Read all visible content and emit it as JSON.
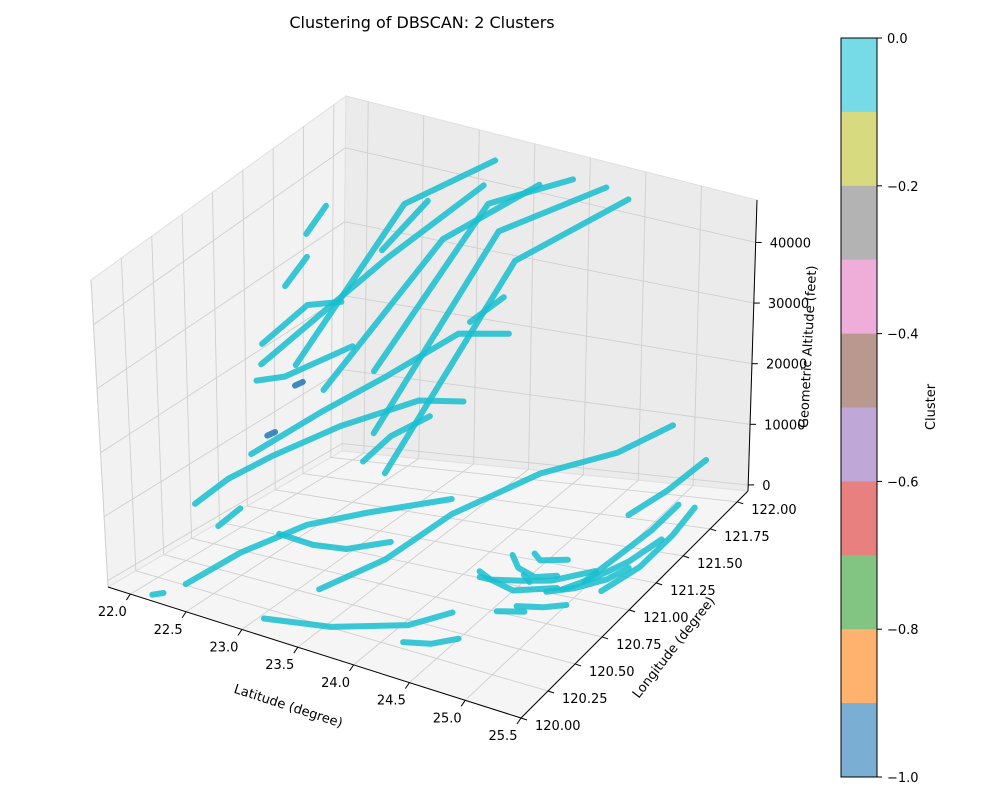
{
  "chart_data": {
    "type": "scatter",
    "title": "Clustering of DBSCAN: 2 Clusters",
    "xlabel": "Latitude (degree)",
    "ylabel": "Longitude (degree)",
    "zlabel": "Geometric Altitude (feet)",
    "xlim": [
      21.8,
      25.5
    ],
    "ylim": [
      120.0,
      122.1
    ],
    "zlim": [
      -1000,
      47000
    ],
    "x_ticks": [
      "22.0",
      "22.5",
      "23.0",
      "23.5",
      "24.0",
      "24.5",
      "25.0",
      "25.5"
    ],
    "y_ticks": [
      "120.00",
      "120.25",
      "120.50",
      "120.75",
      "121.00",
      "121.25",
      "121.50",
      "121.75",
      "122.00"
    ],
    "z_ticks": [
      "0",
      "10000",
      "20000",
      "30000",
      "40000"
    ],
    "grid": true,
    "pane_color": "#f2f2f2",
    "point_color": "#17becf",
    "colorbar": {
      "label": "Cluster",
      "ticks": [
        "0.0",
        "−0.2",
        "−0.4",
        "−0.6",
        "−0.8",
        "−1.0"
      ],
      "min": -1.0,
      "max": 0.0,
      "colors": [
        "#76dbe6",
        "#d8da80",
        "#b3b3b3",
        "#eeaed9",
        "#b9988f",
        "#bfa7d8",
        "#e98080",
        "#82c582",
        "#ffb16e",
        "#7aaed3"
      ]
    },
    "series": [
      {
        "cluster": 0,
        "tracks": [
          {
            "points": [
              [
                21.88,
                121.7,
                33000
              ],
              [
                21.95,
                121.8,
                36000
              ]
            ]
          },
          {
            "points": [
              [
                21.9,
                121.5,
                28000
              ],
              [
                21.97,
                121.62,
                31000
              ]
            ]
          },
          {
            "points": [
              [
                22.2,
                121.3,
                20000
              ],
              [
                22.6,
                121.85,
                38000
              ],
              [
                23.2,
                122.05,
                44000
              ]
            ]
          },
          {
            "points": [
              [
                22.5,
                121.25,
                18000
              ],
              [
                23.0,
                121.8,
                35000
              ],
              [
                23.6,
                122.05,
                42000
              ]
            ]
          },
          {
            "points": [
              [
                22.8,
                121.4,
                20000
              ],
              [
                23.3,
                121.9,
                40000
              ],
              [
                23.9,
                122.05,
                44000
              ]
            ]
          },
          {
            "points": [
              [
                23.0,
                121.2,
                14000
              ],
              [
                23.5,
                121.8,
                38000
              ],
              [
                24.2,
                122.05,
                44000
              ]
            ]
          },
          {
            "points": [
              [
                23.2,
                121.1,
                10000
              ],
              [
                23.7,
                121.75,
                35000
              ],
              [
                24.4,
                122.05,
                43000
              ]
            ]
          },
          {
            "points": [
              [
                22.1,
                121.1,
                22000
              ],
              [
                22.6,
                121.7,
                32000
              ],
              [
                23.1,
                122.05,
                40000
              ]
            ]
          },
          {
            "points": [
              [
                22.35,
                121.9,
                30000
              ],
              [
                22.6,
                122.05,
                36000
              ]
            ]
          },
          {
            "points": [
              [
                21.9,
                121.3,
                22000
              ],
              [
                22.1,
                121.5,
                26000
              ],
              [
                22.3,
                121.6,
                26000
              ]
            ]
          },
          {
            "points": [
              [
                21.95,
                121.2,
                18000
              ],
              [
                22.1,
                121.3,
                18000
              ],
              [
                22.4,
                121.6,
                20000
              ]
            ]
          },
          {
            "points": [
              [
                23.2,
                121.85,
                23000
              ],
              [
                23.4,
                121.95,
                26000
              ]
            ]
          },
          {
            "points": [
              [
                22.1,
                121.0,
                10000
              ],
              [
                22.5,
                121.25,
                15000
              ],
              [
                22.8,
                121.5,
                18000
              ],
              [
                23.1,
                121.85,
                21000
              ],
              [
                23.4,
                122.0,
                20000
              ]
            ]
          },
          {
            "points": [
              [
                22.8,
                121.3,
                8000
              ],
              [
                22.95,
                121.4,
                11000
              ],
              [
                23.1,
                121.6,
                12000
              ]
            ]
          },
          {
            "points": [
              [
                22.1,
                120.5,
                8000
              ],
              [
                22.2,
                120.7,
                10000
              ],
              [
                22.4,
                120.9,
                12000
              ],
              [
                22.7,
                121.2,
                14000
              ],
              [
                23.0,
                121.6,
                14000
              ],
              [
                23.2,
                121.8,
                12000
              ]
            ]
          },
          {
            "points": [
              [
                22.2,
                120.6,
                4000
              ],
              [
                22.3,
                120.7,
                6000
              ]
            ]
          },
          {
            "points": [
              [
                23.2,
                120.5,
                0
              ],
              [
                23.5,
                120.8,
                2000
              ],
              [
                23.8,
                121.1,
                6000
              ],
              [
                24.2,
                121.5,
                8000
              ],
              [
                24.6,
                121.8,
                8000
              ],
              [
                24.9,
                122.0,
                10000
              ]
            ]
          },
          {
            "points": [
              [
                22.3,
                120.2,
                0
              ],
              [
                22.6,
                120.4,
                4000
              ],
              [
                22.9,
                120.7,
                6000
              ],
              [
                23.2,
                120.95,
                6000
              ],
              [
                23.6,
                121.3,
                5000
              ]
            ]
          },
          {
            "points": [
              [
                22.8,
                120.55,
                6000
              ],
              [
                23.0,
                120.65,
                4000
              ],
              [
                23.2,
                120.75,
                3000
              ],
              [
                23.5,
                120.85,
                4000
              ]
            ]
          },
          {
            "points": [
              [
                24.2,
                120.25,
                0
              ],
              [
                24.4,
                120.3,
                0
              ],
              [
                24.6,
                120.35,
                1000
              ]
            ]
          },
          {
            "points": [
              [
                23.1,
                120.1,
                0
              ],
              [
                23.6,
                120.2,
                0
              ],
              [
                24.1,
                120.4,
                0
              ],
              [
                24.3,
                120.6,
                0
              ]
            ]
          },
          {
            "points": [
              [
                22.2,
                120.0,
                0
              ],
              [
                22.25,
                120.05,
                0
              ]
            ]
          },
          {
            "points": [
              [
                25.0,
                121.1,
                0
              ],
              [
                25.2,
                121.2,
                3000
              ],
              [
                25.35,
                121.35,
                5000
              ],
              [
                25.45,
                121.5,
                7000
              ]
            ]
          },
          {
            "points": [
              [
                24.9,
                121.0,
                0
              ],
              [
                25.1,
                121.1,
                1000
              ],
              [
                25.25,
                121.25,
                1500
              ],
              [
                25.4,
                121.4,
                3000
              ]
            ]
          },
          {
            "points": [
              [
                24.8,
                120.95,
                0
              ],
              [
                25.0,
                121.0,
                500
              ],
              [
                25.2,
                121.1,
                1000
              ],
              [
                25.3,
                121.2,
                1500
              ]
            ]
          },
          {
            "points": [
              [
                25.2,
                121.05,
                0
              ],
              [
                25.35,
                121.25,
                1000
              ],
              [
                25.45,
                121.45,
                3000
              ],
              [
                25.5,
                121.6,
                5000
              ]
            ]
          },
          {
            "points": [
              [
                25.0,
                121.5,
                4000
              ],
              [
                25.2,
                121.65,
                6000
              ],
              [
                25.4,
                121.8,
                9000
              ]
            ]
          },
          {
            "points": [
              [
                24.4,
                121.25,
                0
              ],
              [
                24.5,
                121.2,
                0
              ],
              [
                24.7,
                121.25,
                0
              ]
            ]
          },
          {
            "points": [
              [
                24.5,
                121.05,
                0
              ],
              [
                24.6,
                121.0,
                0
              ]
            ]
          },
          {
            "points": [
              [
                24.2,
                120.95,
                0
              ],
              [
                24.3,
                120.95,
                0
              ],
              [
                24.55,
                121.0,
                0
              ],
              [
                24.75,
                121.05,
                0
              ],
              [
                25.0,
                121.2,
                0
              ]
            ]
          },
          {
            "points": [
              [
                24.25,
                121.2,
                0
              ],
              [
                24.4,
                121.1,
                0
              ],
              [
                24.6,
                121.05,
                0
              ],
              [
                24.75,
                121.1,
                0
              ]
            ]
          },
          {
            "points": [
              [
                24.15,
                121.0,
                0
              ],
              [
                24.3,
                120.95,
                0
              ],
              [
                24.55,
                120.9,
                0
              ],
              [
                24.7,
                120.95,
                0
              ],
              [
                24.85,
                121.0,
                0
              ]
            ]
          },
          {
            "points": [
              [
                24.7,
                120.78,
                0
              ],
              [
                24.9,
                120.82,
                0
              ],
              [
                25.05,
                120.88,
                0
              ]
            ]
          },
          {
            "points": [
              [
                24.6,
                120.7,
                0
              ],
              [
                24.8,
                120.75,
                0
              ]
            ]
          }
        ]
      },
      {
        "cluster": -1,
        "tracks": [
          {
            "points": [
              [
                22.4,
                121.1,
                20000
              ],
              [
                22.45,
                121.12,
                20500
              ]
            ]
          },
          {
            "points": [
              [
                22.3,
                120.95,
                14000
              ],
              [
                22.35,
                120.97,
                14500
              ]
            ]
          }
        ]
      }
    ]
  }
}
